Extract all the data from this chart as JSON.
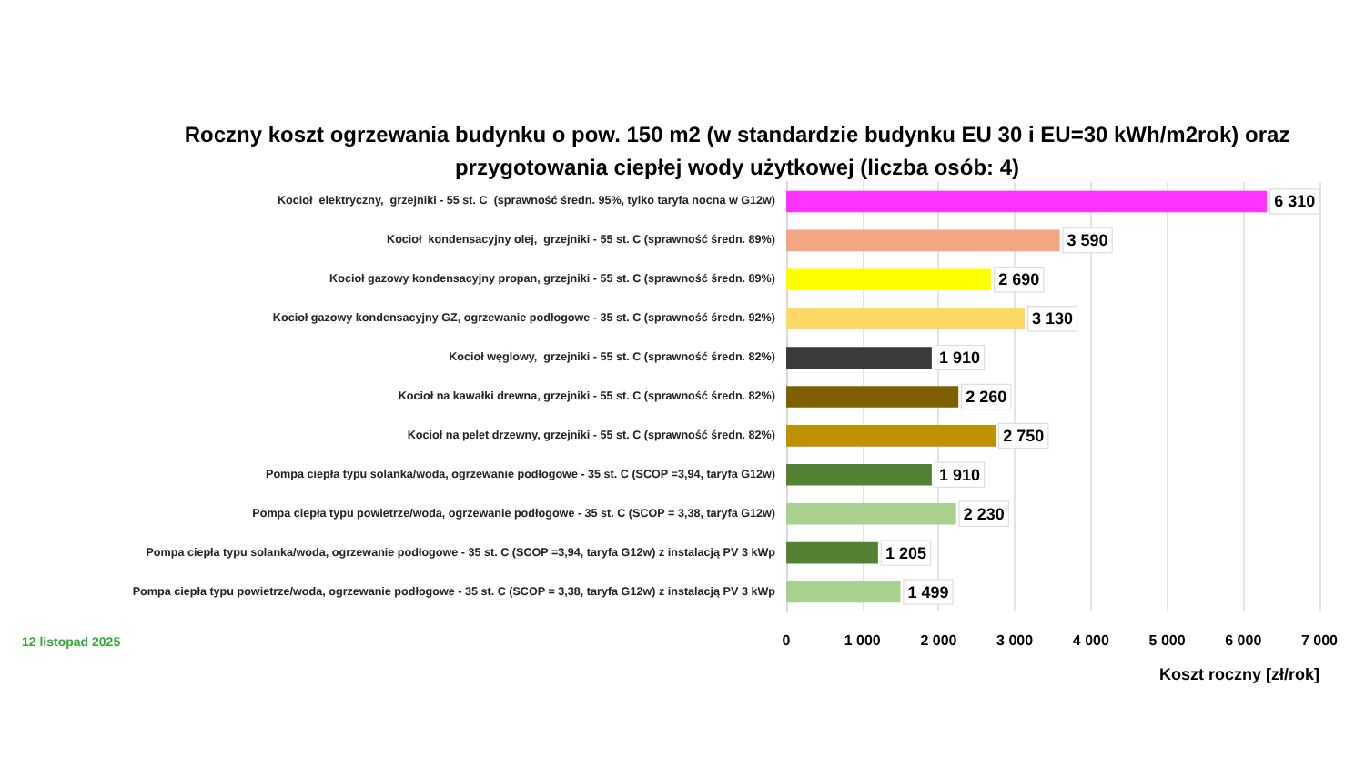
{
  "chart_data": {
    "type": "bar",
    "orientation": "horizontal",
    "title": "Roczny koszt ogrzewania budynku o pow. 150 m2 (w standardzie budynku EU 30 i EU=30 kWh/m2rok) oraz\nprzygotowania ciepłej wody użytkowej (liczba osób: 4)",
    "xlabel": "Koszt roczny [zł/rok]",
    "annotations": [
      "12 listopad 2025"
    ],
    "categories": [
      "Kocioł  elektryczny,  grzejniki - 55 st. C  (sprawność średn. 95%, tylko taryfa nocna w G12w)",
      "Kocioł  kondensacyjny olej,  grzejniki - 55 st. C (sprawność średn. 89%)",
      "Kocioł gazowy kondensacyjny propan, grzejniki - 55 st. C (sprawność średn. 89%)",
      "Kocioł gazowy kondensacyjny GZ, ogrzewanie podłogowe - 35 st. C (sprawność średn. 92%)",
      "Kocioł węglowy,  grzejniki - 55 st. C (sprawność średn. 82%)",
      "Kocioł na kawałki drewna, grzejniki - 55 st. C (sprawność średn. 82%)",
      "Kocioł na pelet drzewny, grzejniki - 55 st. C (sprawność średn. 82%)",
      "Pompa ciepła typu solanka/woda, ogrzewanie podłogowe - 35 st. C (SCOP =3,94, taryfa G12w)",
      "Pompa ciepła typu powietrze/woda, ogrzewanie podłogowe - 35 st. C (SCOP = 3,38, taryfa G12w)",
      "Pompa ciepła typu solanka/woda, ogrzewanie podłogowe - 35 st. C (SCOP =3,94, taryfa G12w) z instalacją PV 3 kWp",
      "Pompa ciepła typu powietrze/woda, ogrzewanie podłogowe - 35 st. C (SCOP = 3,38, taryfa G12w) z instalacją PV 3 kWp"
    ],
    "values": [
      6310,
      3590,
      2690,
      3130,
      1910,
      2260,
      2750,
      1910,
      2230,
      1205,
      1499
    ],
    "value_labels": [
      "6 310",
      "3 590",
      "2 690",
      "3 130",
      "1 910",
      "2 260",
      "2 750",
      "1 910",
      "2 230",
      "1 205",
      "1 499"
    ],
    "colors": [
      "#ff33ff",
      "#f4a582",
      "#ffff00",
      "#ffd966",
      "#3a3a3a",
      "#7f6000",
      "#bf9000",
      "#548235",
      "#a9d18e",
      "#548235",
      "#a9d18e"
    ],
    "xlim": [
      0,
      7000
    ],
    "xticks": [
      0,
      {
        "value": 1000,
        "label": "1 000"
      },
      {
        "value": 2000,
        "label": "2 000"
      },
      {
        "value": 3000,
        "label": "3 000"
      },
      {
        "value": 4000,
        "label": "4 000"
      },
      {
        "value": 5000,
        "label": "5 000"
      },
      {
        "value": 6000,
        "label": "6 000"
      },
      {
        "value": 7000,
        "label": "7 000"
      }
    ],
    "grid": "x"
  }
}
